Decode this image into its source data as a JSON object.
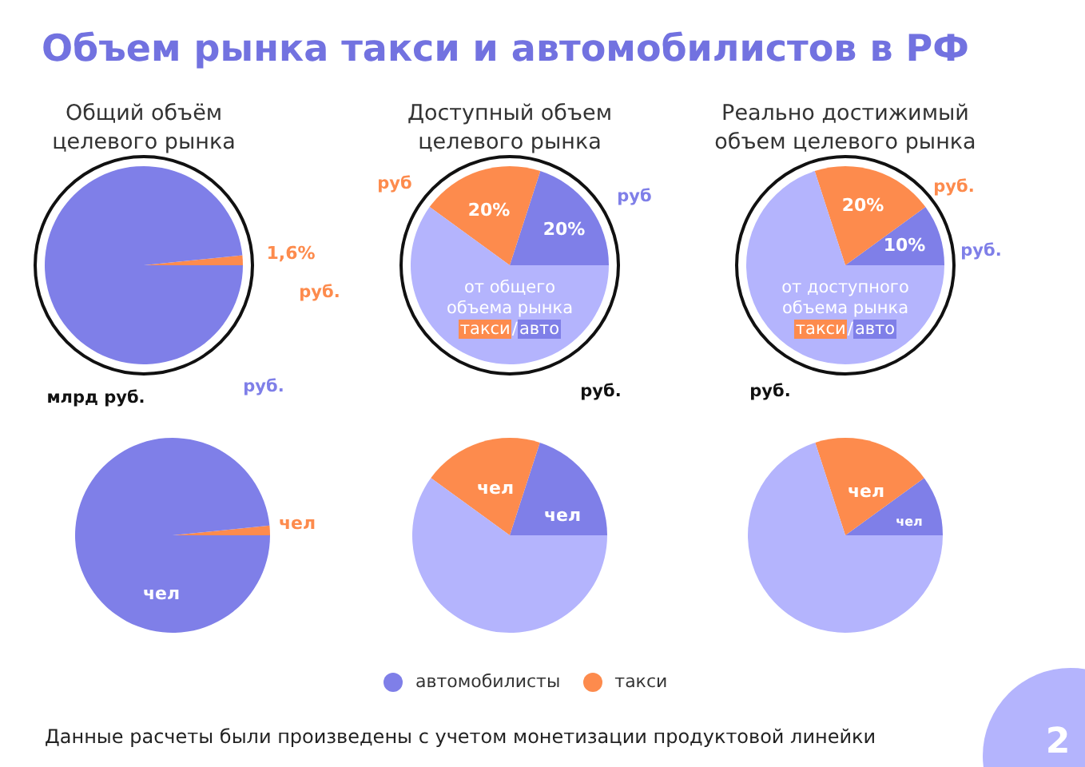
{
  "chart_data": [
    {
      "type": "pie",
      "title": "Объем рынка такси и автомобилистов в РФ",
      "subtitle": "Общий объём целевого рынка",
      "categories": [
        null,
        null
      ],
      "values": [
        1.6,
        98.4
      ],
      "colors": [
        "#fd8b4d",
        "#7f7fe8"
      ],
      "value_labels": [
        "1,6%",
        null
      ],
      "annotations": [
        "руб.",
        "руб.",
        "млрд руб."
      ]
    },
    {
      "type": "pie",
      "title": "Доступный объем целевого рынка",
      "categories": [
        null,
        null,
        null
      ],
      "values": [
        20,
        20,
        60
      ],
      "colors": [
        "#7f7fe8",
        "#fd8b4d",
        "#b4b4fd"
      ],
      "value_labels": [
        "20%",
        "20%",
        null
      ],
      "annotations": [
        "руб",
        "руб",
        "руб.",
        "от общего объема рынка такси/авто"
      ]
    },
    {
      "type": "pie",
      "title": "Реально достижимый объем целевого рынка",
      "categories": [
        null,
        null,
        null
      ],
      "values": [
        10,
        20,
        70
      ],
      "colors": [
        "#7f7fe8",
        "#fd8b4d",
        "#b4b4fd"
      ],
      "value_labels": [
        "10%",
        "20%",
        null
      ],
      "annotations": [
        "руб.",
        "руб.",
        "руб.",
        "от доступного объема рынка такси/авто"
      ]
    },
    {
      "type": "pie",
      "categories": [
        null,
        null
      ],
      "values": [
        1.6,
        98.4
      ],
      "colors": [
        "#fd8b4d",
        "#7f7fe8"
      ],
      "value_labels": [
        "чел",
        "чел"
      ]
    },
    {
      "type": "pie",
      "categories": [
        "автомобилисты",
        "такси",
        null
      ],
      "values": [
        20,
        20,
        60
      ],
      "colors": [
        "#7f7fe8",
        "#fd8b4d",
        "#b4b4fd"
      ],
      "value_labels": [
        "чел",
        "чел",
        null
      ],
      "legend": "bottom"
    },
    {
      "type": "pie",
      "categories": [
        null,
        null,
        null
      ],
      "values": [
        10,
        20,
        70
      ],
      "colors": [
        "#7f7fe8",
        "#fd8b4d",
        "#b4b4fd"
      ],
      "value_labels": [
        "чел",
        "чел",
        null
      ],
      "annotations": [
        "Данные расчеты были произведены с учетом монетизации продуктовой линейки",
        "2"
      ]
    }
  ]
}
